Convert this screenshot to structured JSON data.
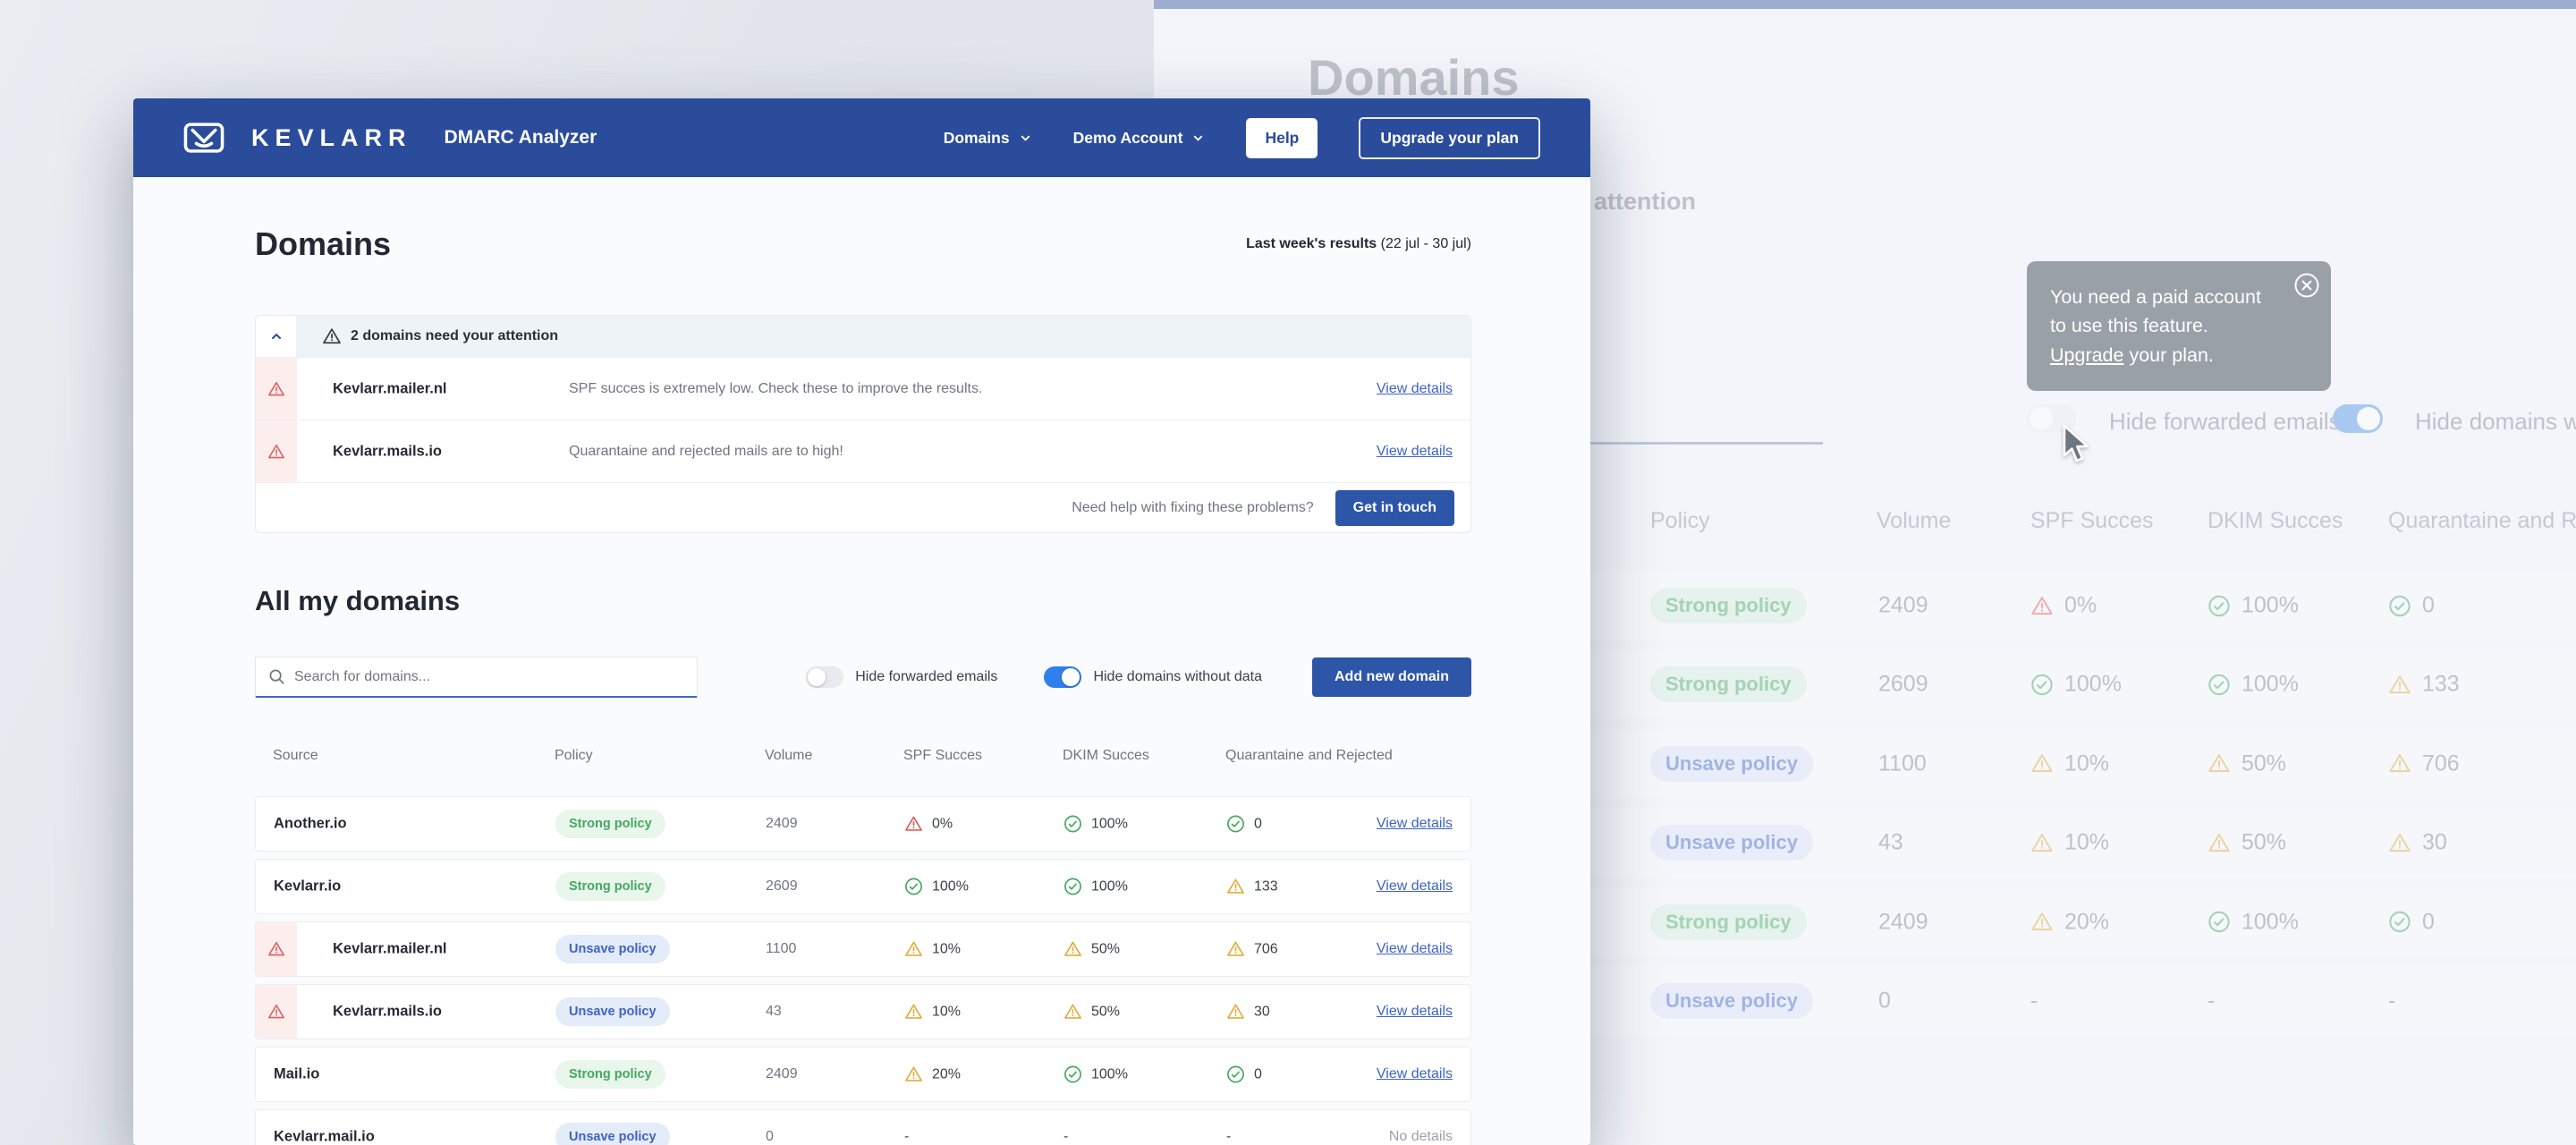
{
  "colors": {
    "header-blue": "#2b4c9b",
    "button-blue": "#2d55a8",
    "accent-blue": "#2f80ed",
    "link-blue": "#3f63c7",
    "green": "#45a860",
    "green-bg": "#e8f6ec",
    "policy-blue": "#3f63c7",
    "policy-blue-bg": "#e4ebf9",
    "warn-yellow": "#dfae3e",
    "error-red": "#dd5f5f",
    "pink-bg": "#fdeeee",
    "tooltip-gray": "#959ba4"
  },
  "brand": {
    "name": "KEVLARR",
    "product": "DMARC Analyzer"
  },
  "nav": {
    "domains": "Domains",
    "account": "Demo Account",
    "help": "Help",
    "upgrade": "Upgrade your plan"
  },
  "page": {
    "title": "Domains",
    "results_label": "Last week's results",
    "results_range": " (22 jul - 30 jul)"
  },
  "alerts": {
    "title": "2 domains need your attention",
    "items": [
      {
        "domain": "Kevlarr.mailer.nl",
        "message": "SPF succes is extremely low. Check these to improve the results.",
        "action": "View details"
      },
      {
        "domain": "Kevlarr.mails.io",
        "message": "Quarantaine and rejected mails are to high!",
        "action": "View details"
      }
    ],
    "footer_text": "Need help with fixing these problems?",
    "footer_button": "Get in touch"
  },
  "domains_section": {
    "title": "All my domains",
    "search_placeholder": "Search for domains...",
    "toggles": [
      {
        "label": "Hide forwarded emails",
        "on": false
      },
      {
        "label": "Hide domains without data",
        "on": true
      }
    ],
    "add_button": "Add new domain"
  },
  "table": {
    "headers": [
      "Source",
      "Policy",
      "Volume",
      "SPF Succes",
      "DKIM Succes",
      "Quarantaine and Rejected"
    ],
    "rows": [
      {
        "warning": false,
        "source": "Another.io",
        "policy": {
          "label": "Strong policy",
          "type": "strong"
        },
        "volume": "2409",
        "spf": {
          "status": "error",
          "value": "0%"
        },
        "dkim": {
          "status": "ok",
          "value": "100%"
        },
        "quarantine": {
          "status": "ok",
          "value": "0"
        },
        "action": {
          "label": "View details",
          "link": true
        }
      },
      {
        "warning": false,
        "source": "Kevlarr.io",
        "policy": {
          "label": "Strong policy",
          "type": "strong"
        },
        "volume": "2609",
        "spf": {
          "status": "ok",
          "value": "100%"
        },
        "dkim": {
          "status": "ok",
          "value": "100%"
        },
        "quarantine": {
          "status": "warn",
          "value": "133"
        },
        "action": {
          "label": "View details",
          "link": true
        }
      },
      {
        "warning": true,
        "source": "Kevlarr.mailer.nl",
        "policy": {
          "label": "Unsave policy",
          "type": "unsave"
        },
        "volume": "1100",
        "spf": {
          "status": "warn",
          "value": "10%"
        },
        "dkim": {
          "status": "warn",
          "value": "50%"
        },
        "quarantine": {
          "status": "warn",
          "value": "706"
        },
        "action": {
          "label": "View details",
          "link": true
        }
      },
      {
        "warning": true,
        "source": "Kevlarr.mails.io",
        "policy": {
          "label": "Unsave policy",
          "type": "unsave"
        },
        "volume": "43",
        "spf": {
          "status": "warn",
          "value": "10%"
        },
        "dkim": {
          "status": "warn",
          "value": "50%"
        },
        "quarantine": {
          "status": "warn",
          "value": "30"
        },
        "action": {
          "label": "View details",
          "link": true
        }
      },
      {
        "warning": false,
        "source": "Mail.io",
        "policy": {
          "label": "Strong policy",
          "type": "strong"
        },
        "volume": "2409",
        "spf": {
          "status": "warn",
          "value": "20%"
        },
        "dkim": {
          "status": "ok",
          "value": "100%"
        },
        "quarantine": {
          "status": "ok",
          "value": "0"
        },
        "action": {
          "label": "View details",
          "link": true
        }
      },
      {
        "warning": false,
        "source": "Kevlarr.mail.io",
        "policy": {
          "label": "Unsave policy",
          "type": "unsave"
        },
        "volume": "0",
        "spf": {
          "status": "none",
          "value": "-"
        },
        "dkim": {
          "status": "none",
          "value": "-"
        },
        "quarantine": {
          "status": "none",
          "value": "-"
        },
        "action": {
          "label": "No details",
          "link": false
        }
      }
    ]
  },
  "background": {
    "heading": "Domains",
    "attention_fragment": "attention",
    "headers": [
      "Policy",
      "Volume",
      "SPF Succes",
      "DKIM Succes",
      "Quarantaine and Rejected"
    ],
    "toggles": [
      {
        "label": "Hide forwarded emails",
        "on": false
      },
      {
        "label": "Hide domains without data",
        "on": true
      }
    ],
    "tooltip": {
      "text_before": "You need a paid account to use this feature. ",
      "link": "Upgrade",
      "text_after": " your plan."
    }
  }
}
